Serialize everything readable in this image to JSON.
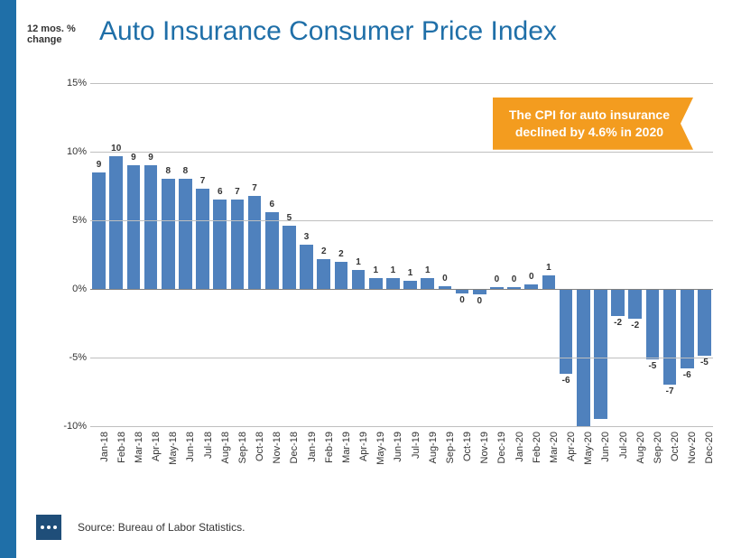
{
  "title": "Auto Insurance Consumer Price Index",
  "title_color": "#1f6fa8",
  "title_fontsize": 30,
  "y_axis_title": "12 mos. % change",
  "accent_bar_color": "#1f6fa8",
  "callout": {
    "line1": "The CPI for auto insurance",
    "line2": "declined by 4.6% in 2020",
    "bg_color": "#f39c1f",
    "text_color": "#ffffff"
  },
  "chart": {
    "type": "bar",
    "ylim": [
      -10,
      15
    ],
    "ytick_step": 5,
    "yticks": [
      -10,
      -5,
      0,
      5,
      10,
      15
    ],
    "ytick_labels": [
      "-10%",
      "-5%",
      "0%",
      "5%",
      "10%",
      "15%"
    ],
    "grid_color": "#bfbfbf",
    "zero_line_color": "#808080",
    "background_color": "#ffffff",
    "bar_color": "#4f81bd",
    "bar_width_ratio": 0.76,
    "label_fontsize": 10,
    "x_label_fontsize": 11,
    "categories": [
      "Jan-18",
      "Feb-18",
      "Mar-18",
      "Apr-18",
      "May-18",
      "Jun-18",
      "Jul-18",
      "Aug-18",
      "Sep-18",
      "Oct-18",
      "Nov-18",
      "Dec-18",
      "Jan-19",
      "Feb-19",
      "Mar-19",
      "Apr-19",
      "May-19",
      "Jun-19",
      "Jul-19",
      "Aug-19",
      "Sep-19",
      "Oct-19",
      "Nov-19",
      "Dec-19",
      "Jan-20",
      "Feb-20",
      "Mar-20",
      "Apr-20",
      "May-20",
      "Jun-20",
      "Jul-20",
      "Aug-20",
      "Sep-20",
      "Oct-20",
      "Nov-20",
      "Dec-20"
    ],
    "values": [
      8.5,
      9.7,
      9,
      9,
      8,
      8,
      7.3,
      6.5,
      6.5,
      6.8,
      5.6,
      4.6,
      3.2,
      2.2,
      2,
      1.4,
      0.8,
      0.8,
      0.6,
      0.8,
      0.2,
      -0.3,
      -0.4,
      0.1,
      0.1,
      0.3,
      1,
      -6.2,
      -10,
      -9.5,
      -2,
      -2.2,
      -5.1,
      -7,
      -5.8,
      -4.9
    ],
    "value_labels": [
      "9",
      "10",
      "9",
      "9",
      "8",
      "8",
      "7",
      "6",
      "7",
      "7",
      "6",
      "5",
      "3",
      "2",
      "2",
      "1",
      "1",
      "1",
      "1",
      "1",
      "0",
      "0",
      "0",
      "0",
      "0",
      "0",
      "1",
      "-6",
      "",
      "",
      "-2",
      "-2",
      "-5",
      "-7",
      "-6",
      "-5"
    ]
  },
  "source": "Source: Bureau of Labor Statistics.",
  "logo_bg_color": "#1f4e79"
}
